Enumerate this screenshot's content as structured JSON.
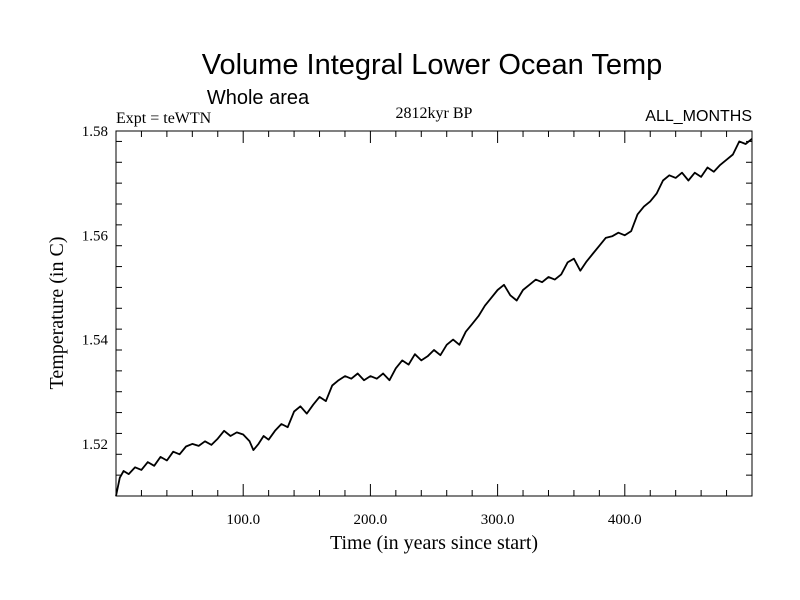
{
  "chart_data": {
    "type": "line",
    "title": "Volume Integral Lower Ocean Temp",
    "subtitle": "Whole area",
    "left_label": "Expt = teWTN",
    "center_label": "2812kyr BP",
    "right_label": "ALL_MONTHS",
    "xlabel": "Time (in years since start)",
    "ylabel": "Temperature (in C)",
    "xlim": [
      0,
      500
    ],
    "ylim": [
      1.51,
      1.58
    ],
    "x_ticks": [
      100,
      200,
      300,
      400
    ],
    "x_tick_labels": [
      "100.0",
      "200.0",
      "300.0",
      "400.0"
    ],
    "y_ticks": [
      1.52,
      1.54,
      1.56,
      1.58
    ],
    "y_tick_labels": [
      "1.52",
      "1.54",
      "1.56",
      "1.58"
    ],
    "grid": false,
    "series": [
      {
        "name": "Volume Integral Lower Ocean Temp",
        "color": "#000000",
        "x": [
          0,
          3,
          6,
          10,
          15,
          20,
          25,
          30,
          35,
          40,
          45,
          50,
          55,
          60,
          65,
          70,
          75,
          80,
          85,
          90,
          95,
          100,
          105,
          108,
          112,
          116,
          120,
          125,
          130,
          135,
          140,
          145,
          150,
          155,
          160,
          165,
          170,
          175,
          180,
          185,
          190,
          195,
          200,
          205,
          210,
          215,
          220,
          225,
          230,
          235,
          240,
          245,
          250,
          255,
          260,
          265,
          270,
          275,
          280,
          285,
          290,
          295,
          300,
          305,
          310,
          315,
          320,
          325,
          330,
          335,
          340,
          345,
          350,
          355,
          360,
          365,
          370,
          375,
          380,
          385,
          390,
          395,
          400,
          405,
          410,
          415,
          420,
          425,
          430,
          435,
          440,
          445,
          450,
          455,
          460,
          465,
          470,
          475,
          480,
          485,
          490,
          495,
          500
        ],
        "values": [
          1.51,
          1.5135,
          1.5148,
          1.5142,
          1.5155,
          1.515,
          1.5165,
          1.5158,
          1.5175,
          1.5168,
          1.5185,
          1.518,
          1.5195,
          1.52,
          1.5196,
          1.5205,
          1.5198,
          1.521,
          1.5225,
          1.5215,
          1.5222,
          1.5218,
          1.5205,
          1.5188,
          1.52,
          1.5215,
          1.5208,
          1.5225,
          1.5238,
          1.5232,
          1.5262,
          1.5272,
          1.5258,
          1.5275,
          1.529,
          1.5282,
          1.5312,
          1.5322,
          1.533,
          1.5325,
          1.5335,
          1.5322,
          1.533,
          1.5325,
          1.5335,
          1.5322,
          1.5345,
          1.536,
          1.5352,
          1.5372,
          1.536,
          1.5368,
          1.538,
          1.537,
          1.539,
          1.54,
          1.539,
          1.5415,
          1.543,
          1.5445,
          1.5465,
          1.548,
          1.5495,
          1.5505,
          1.5485,
          1.5475,
          1.5495,
          1.5505,
          1.5515,
          1.551,
          1.552,
          1.5515,
          1.5525,
          1.5548,
          1.5555,
          1.5532,
          1.555,
          1.5565,
          1.558,
          1.5595,
          1.5598,
          1.5605,
          1.56,
          1.5608,
          1.564,
          1.5655,
          1.5665,
          1.568,
          1.5705,
          1.5715,
          1.571,
          1.572,
          1.5705,
          1.572,
          1.5712,
          1.573,
          1.5722,
          1.5735,
          1.5745,
          1.5755,
          1.578,
          1.5775,
          1.5785
        ]
      }
    ]
  }
}
